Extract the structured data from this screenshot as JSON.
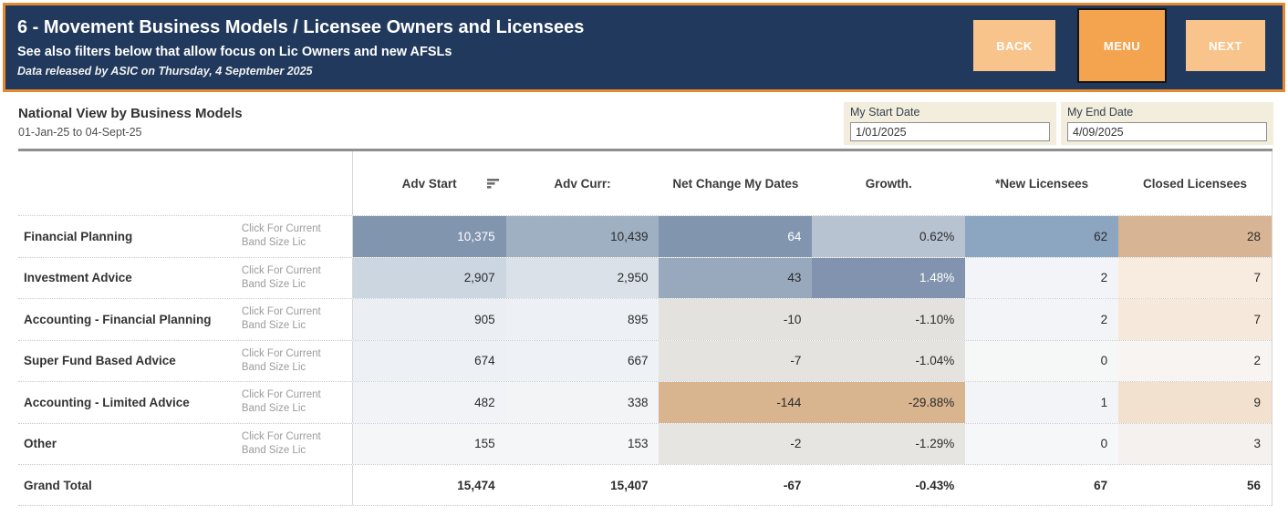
{
  "header": {
    "title": "6 - Movement Business Models / Licensee Owners and Licensees",
    "subtitle": "See also filters below that allow focus on Lic Owners and new AFSLs",
    "release_note": "Data released by ASIC on Thursday, 4 September 2025",
    "buttons": {
      "back": "BACK",
      "menu": "MENU",
      "next": "NEXT"
    },
    "colors": {
      "banner_bg": "#20395c",
      "banner_border": "#e58931",
      "btn_light": "#f9c48b",
      "btn_dark": "#f4a44f"
    }
  },
  "view": {
    "title": "National View by Business Models",
    "date_range": "01-Jan-25 to 04-Sept-25"
  },
  "filters": {
    "start": {
      "label": "My Start Date",
      "value": "1/01/2025"
    },
    "end": {
      "label": "My End Date",
      "value": "4/09/2025"
    }
  },
  "table": {
    "columns": [
      "Adv Start",
      "Adv Curr:",
      "Net Change My Dates",
      "Growth.",
      "*New Licensees",
      "Closed Licensees"
    ],
    "sort_icon": "sort-descending-icon",
    "light_text_color": "#ffffff",
    "rows": [
      {
        "label": "Financial Planning",
        "hint": "Click For Current\nBand Size Lic",
        "values": [
          "10,375",
          "10,439",
          "64",
          "0.62%",
          "62",
          "28"
        ],
        "bg": [
          "#8295af",
          "#9fb0c3",
          "#8295af",
          "#b7c3d1",
          "#8ca5c0",
          "#d7b494"
        ],
        "light_text": [
          0,
          2
        ]
      },
      {
        "label": "Investment Advice",
        "hint": "Click For Current\nBand Size Lic",
        "values": [
          "2,907",
          "2,950",
          "43",
          "1.48%",
          "2",
          "7"
        ],
        "bg": [
          "#ccd6e1",
          "#dae1e9",
          "#98a9be",
          "#8193ae",
          "#f3f4f7",
          "#f8ece1"
        ],
        "light_text": [
          3
        ]
      },
      {
        "label": "Accounting - Financial Planning",
        "hint": "Click For Current\nBand Size Lic",
        "values": [
          "905",
          "895",
          "-10",
          "-1.10%",
          "2",
          "7"
        ],
        "bg": [
          "#ebeef3",
          "#edf0f4",
          "#e3e2df",
          "#e3e2df",
          "#f3f4f7",
          "#f6e8db"
        ],
        "light_text": []
      },
      {
        "label": "Super Fund Based Advice",
        "hint": "Click For Current\nBand Size Lic",
        "values": [
          "674",
          "667",
          "-7",
          "-1.04%",
          "0",
          "2"
        ],
        "bg": [
          "#edf0f4",
          "#eef1f5",
          "#e4e3e0",
          "#e4e3e0",
          "#f6f7f7",
          "#f7f4f1"
        ],
        "light_text": []
      },
      {
        "label": "Accounting - Limited Advice",
        "hint": "Click For Current\nBand Size Lic",
        "values": [
          "482",
          "338",
          "-144",
          "-29.88%",
          "1",
          "9"
        ],
        "bg": [
          "#f1f3f6",
          "#f3f4f6",
          "#d8b48f",
          "#d8b48f",
          "#f3f4f7",
          "#f2e1cf"
        ],
        "light_text": []
      },
      {
        "label": "Other",
        "hint": "Click For Current\nBand Size Lic",
        "values": [
          "155",
          "153",
          "-2",
          "-1.29%",
          "0",
          "3"
        ],
        "bg": [
          "#f4f6f8",
          "#f5f6f8",
          "#e6e5e2",
          "#e6e5e2",
          "#f6f7f8",
          "#f5f1ee"
        ],
        "light_text": []
      }
    ],
    "grand_total": {
      "label": "Grand Total",
      "values": [
        "15,474",
        "15,407",
        "-67",
        "-0.43%",
        "67",
        "56"
      ]
    }
  }
}
